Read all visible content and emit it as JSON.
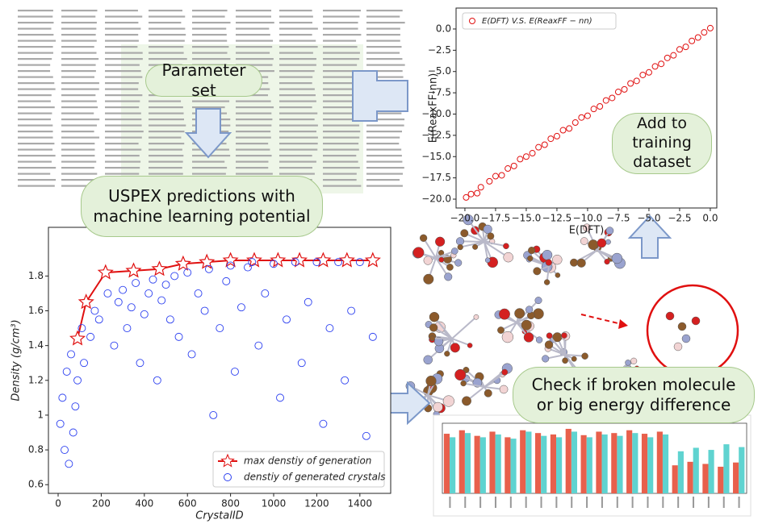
{
  "parameter_set": {
    "label": "Parameter set"
  },
  "uspex": {
    "label": "USPEX predictions with machine learning potential"
  },
  "training": {
    "label": "Add to training dataset"
  },
  "check": {
    "label": "Check if broken molecule or big energy difference"
  },
  "chart_data": [
    {
      "type": "scatter",
      "x_label": "E(DFT)",
      "y_label": "E(ReaxFF-nn)",
      "legend": "upper left",
      "xlim": [
        -20.72,
        0.53
      ],
      "ylim": [
        -21.04,
        2.46
      ],
      "xticks": [
        {
          "value": -20,
          "label": "−20.0"
        },
        {
          "value": -17.5,
          "label": "−17.5"
        },
        {
          "value": -15,
          "label": "−15.0"
        },
        {
          "value": -12.5,
          "label": "−12.5"
        },
        {
          "value": -10,
          "label": "−10.0"
        },
        {
          "value": -7.5,
          "label": "−7.5"
        },
        {
          "value": -5,
          "label": "−5.0"
        },
        {
          "value": -2.5,
          "label": "−2.5"
        },
        {
          "value": 0,
          "label": "0.0"
        }
      ],
      "yticks": [
        {
          "value": -20,
          "label": "−20.0"
        },
        {
          "value": -17.5,
          "label": "−17.5"
        },
        {
          "value": -15,
          "label": "−15.0"
        },
        {
          "value": -12.5,
          "label": "−12.5"
        },
        {
          "value": -10,
          "label": "−10.0"
        },
        {
          "value": -7.5,
          "label": "−7.5"
        },
        {
          "value": -5,
          "label": "−5.0"
        },
        {
          "value": -2.5,
          "label": "−2.5"
        },
        {
          "value": 0,
          "label": "0.0"
        }
      ],
      "series": [
        {
          "name": "E(DFT) V.S. E(ReaxFF − nn)",
          "color": "#e01010",
          "x": [
            -19.9,
            -19.5,
            -19.0,
            -18.7,
            -18.0,
            -17.5,
            -17.0,
            -16.5,
            -16.0,
            -15.5,
            -15.0,
            -14.5,
            -14.0,
            -13.5,
            -13.0,
            -12.5,
            -12.0,
            -11.5,
            -11.0,
            -10.5,
            -10.0,
            -9.5,
            -9.0,
            -8.5,
            -8.0,
            -7.5,
            -7.0,
            -6.5,
            -6.0,
            -5.5,
            -5.0,
            -4.5,
            -4.0,
            -3.5,
            -3.0,
            -2.5,
            -2.0,
            -1.5,
            -1.0,
            -0.5,
            0
          ],
          "values": [
            -19.8,
            -19.4,
            -19.3,
            -18.6,
            -17.9,
            -17.3,
            -17.2,
            -16.4,
            -16.1,
            -15.3,
            -15.0,
            -14.6,
            -13.9,
            -13.6,
            -12.9,
            -12.6,
            -11.9,
            -11.7,
            -11.0,
            -10.4,
            -10.2,
            -9.4,
            -9.1,
            -8.4,
            -8.1,
            -7.4,
            -7.1,
            -6.4,
            -6.1,
            -5.4,
            -5.1,
            -4.4,
            -4.1,
            -3.4,
            -3.1,
            -2.4,
            -2.1,
            -1.4,
            -1.0,
            -0.4,
            0.1
          ]
        }
      ]
    },
    {
      "type": "line_scatter",
      "x_label": "CrystalID",
      "y_label": "Density (g/cm³)",
      "legend": "lower right",
      "xlim": [
        -45,
        1543
      ],
      "ylim": [
        0.55,
        2.08
      ],
      "xticks": [
        0,
        200,
        400,
        600,
        800,
        1000,
        1200,
        1400
      ],
      "yticks": [
        0.6,
        0.8,
        1.0,
        1.2,
        1.4,
        1.6,
        1.8
      ],
      "series": [
        {
          "name": "max denstiy of generation",
          "color": "#e01010",
          "style": "line",
          "x": [
            90,
            130,
            220,
            350,
            470,
            580,
            690,
            800,
            910,
            1020,
            1120,
            1230,
            1340,
            1460
          ],
          "values": [
            1.44,
            1.65,
            1.82,
            1.83,
            1.84,
            1.87,
            1.88,
            1.89,
            1.89,
            1.89,
            1.89,
            1.89,
            1.89,
            1.89
          ]
        },
        {
          "name": "denstiy of generated crystals",
          "color": "#2b3ff0",
          "style": "points",
          "x": [
            10,
            20,
            30,
            40,
            50,
            60,
            70,
            80,
            90,
            110,
            120,
            150,
            170,
            190,
            230,
            260,
            280,
            300,
            320,
            340,
            360,
            380,
            400,
            420,
            440,
            460,
            480,
            500,
            520,
            540,
            560,
            600,
            620,
            650,
            680,
            700,
            720,
            750,
            780,
            800,
            820,
            850,
            880,
            900,
            930,
            960,
            1000,
            1030,
            1060,
            1100,
            1130,
            1160,
            1200,
            1230,
            1260,
            1300,
            1330,
            1360,
            1400,
            1430,
            1460
          ],
          "values": [
            0.95,
            1.1,
            0.8,
            1.25,
            0.72,
            1.35,
            0.9,
            1.05,
            1.2,
            1.5,
            1.3,
            1.45,
            1.6,
            1.55,
            1.7,
            1.4,
            1.65,
            1.72,
            1.5,
            1.62,
            1.76,
            1.3,
            1.58,
            1.7,
            1.78,
            1.2,
            1.66,
            1.75,
            1.55,
            1.8,
            1.45,
            1.82,
            1.35,
            1.7,
            1.6,
            1.84,
            1.0,
            1.5,
            1.77,
            1.86,
            1.25,
            1.62,
            1.85,
            1.88,
            1.4,
            1.7,
            1.87,
            1.1,
            1.55,
            1.88,
            1.3,
            1.65,
            1.88,
            0.95,
            1.5,
            1.88,
            1.2,
            1.6,
            1.88,
            0.88,
            1.45
          ]
        }
      ]
    },
    {
      "type": "bar",
      "ylim": [
        0,
        1
      ],
      "series": [
        {
          "color": "#e8604c",
          "values": [
            0.85,
            0.9,
            0.82,
            0.88,
            0.8,
            0.9,
            0.86,
            0.84,
            0.92,
            0.83,
            0.88,
            0.86,
            0.9,
            0.85,
            0.88,
            0.4,
            0.45,
            0.42,
            0.38,
            0.44
          ]
        },
        {
          "color": "#5fd3d0",
          "values": [
            0.8,
            0.86,
            0.8,
            0.84,
            0.78,
            0.88,
            0.82,
            0.8,
            0.88,
            0.8,
            0.84,
            0.82,
            0.86,
            0.8,
            0.84,
            0.6,
            0.65,
            0.62,
            0.7,
            0.66
          ]
        }
      ]
    }
  ]
}
